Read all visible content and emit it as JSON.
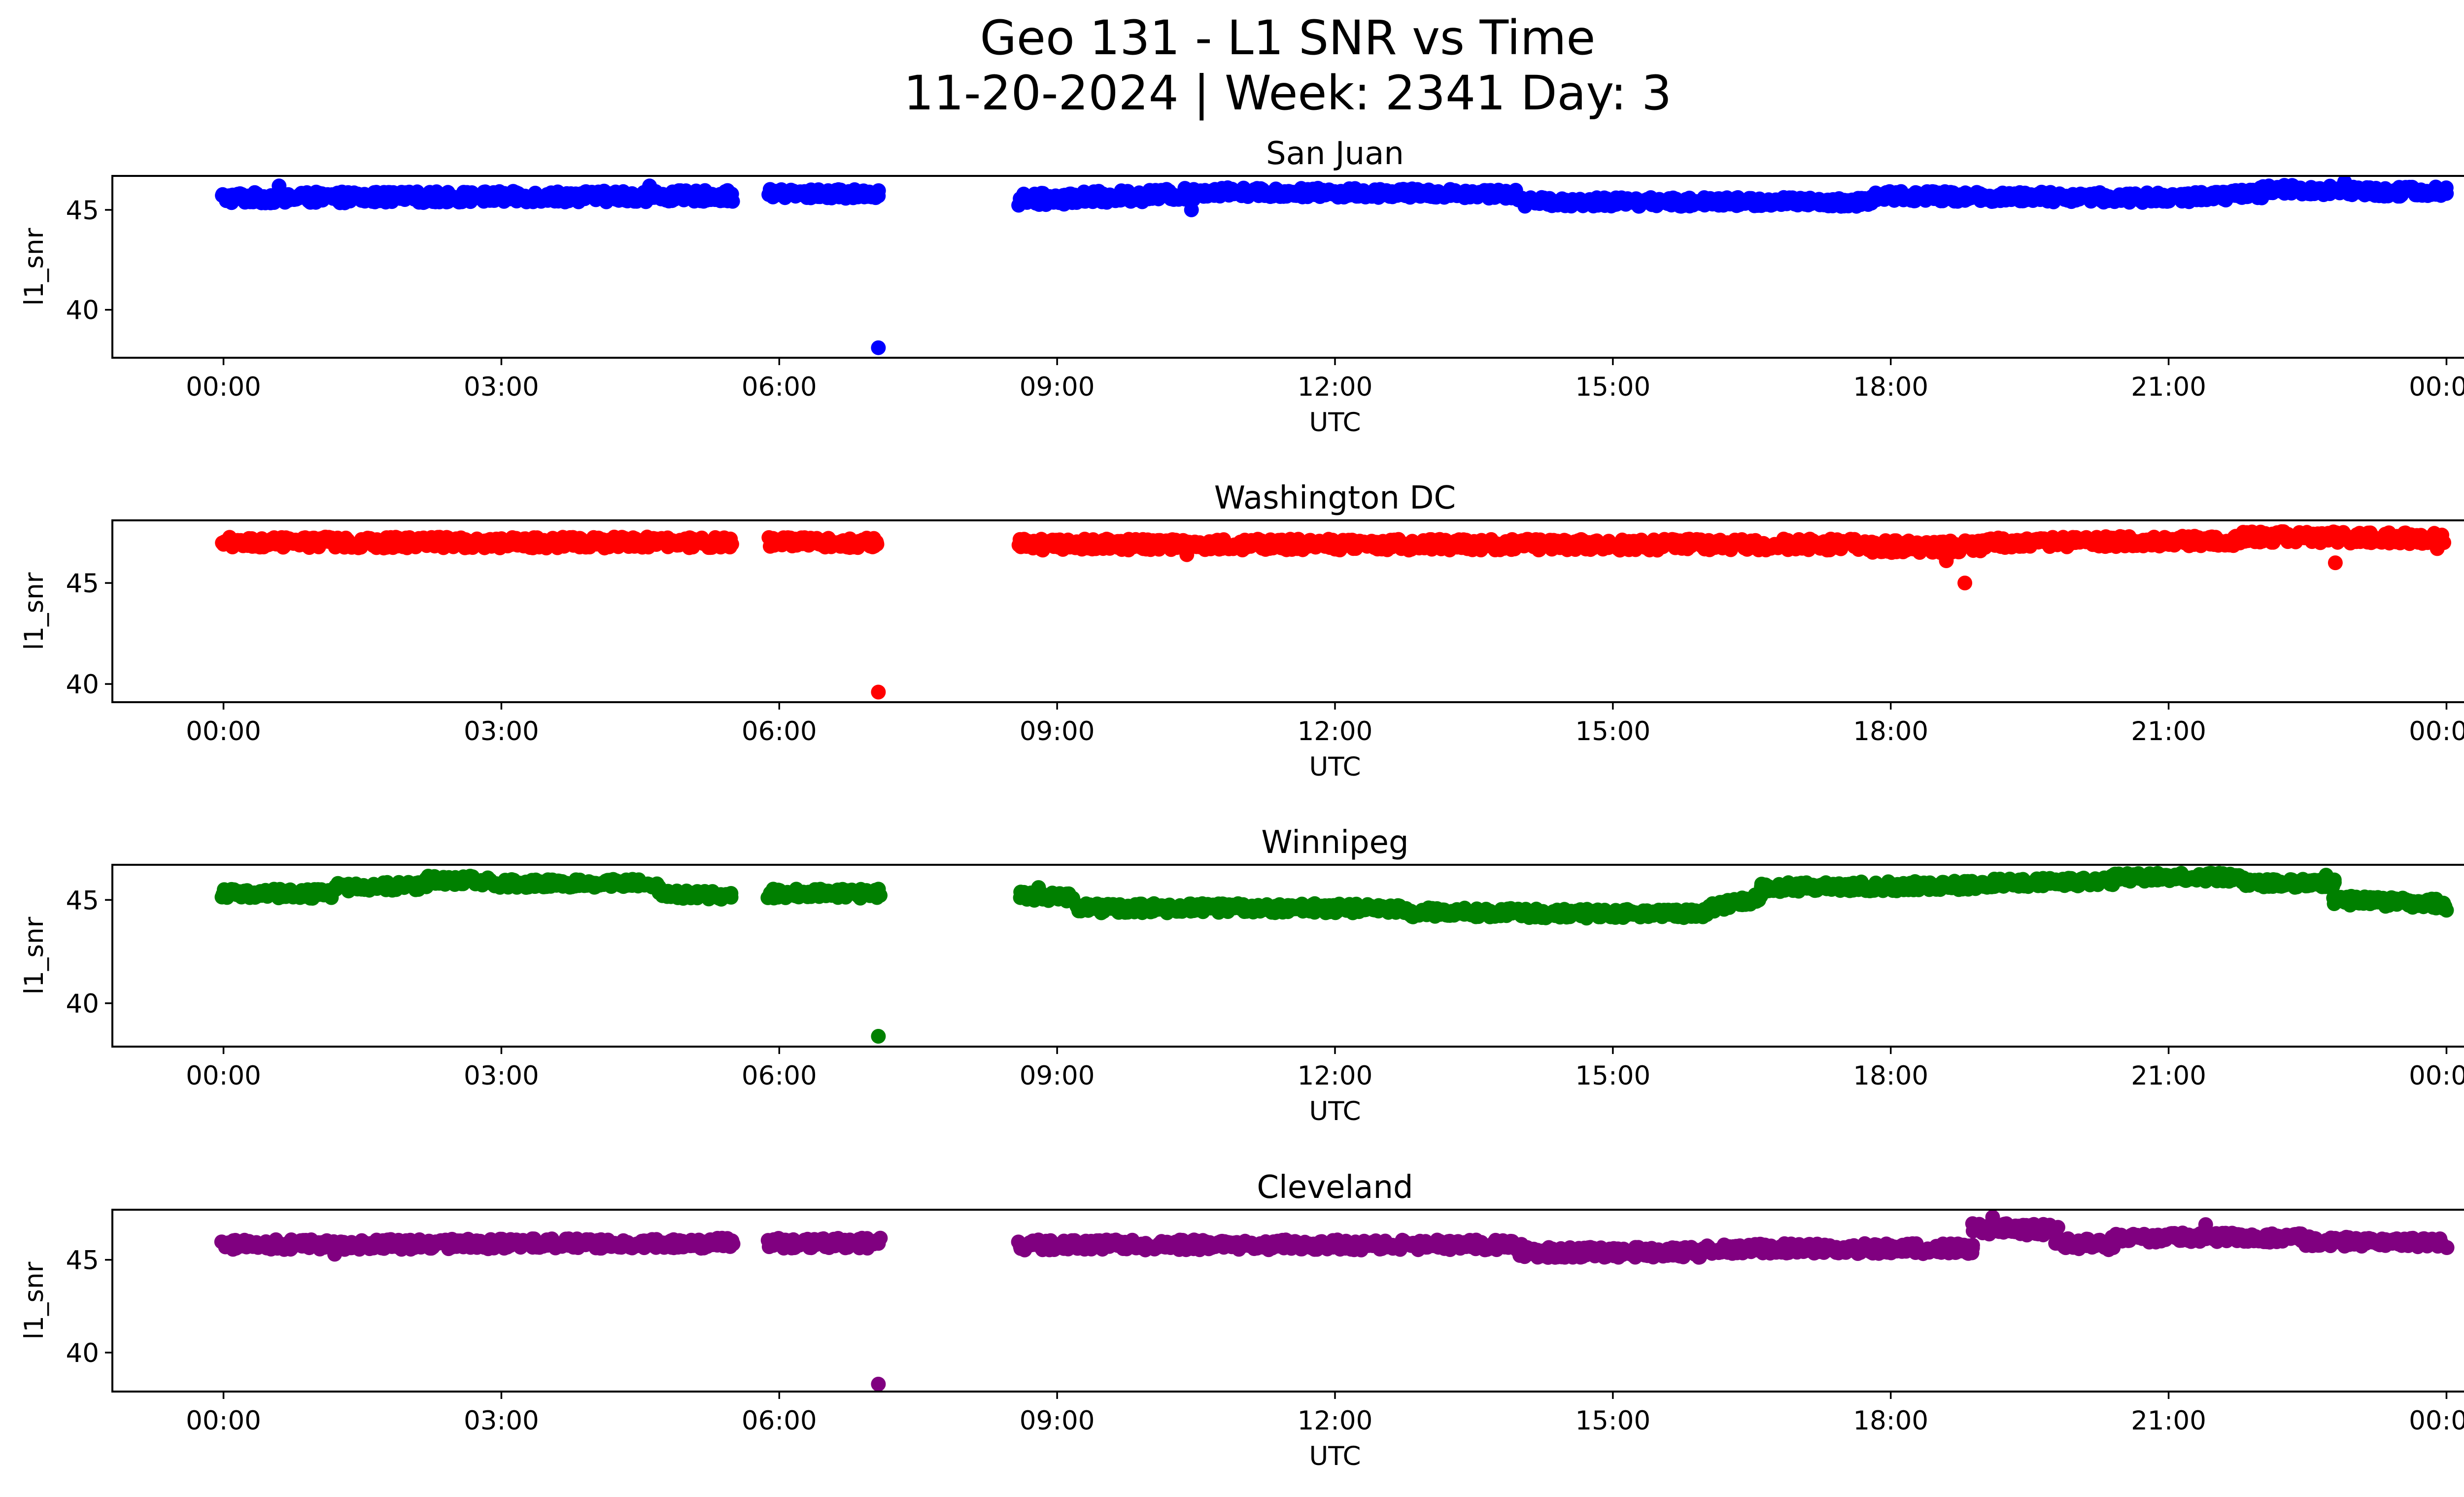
{
  "figure": {
    "title_line1": "Geo 131 - L1 SNR vs Time",
    "title_line2": "11-20-2024 | Week: 2341 Day: 3"
  },
  "chart_data": [
    {
      "type": "scatter",
      "title": "San Juan",
      "color": "#0000ff",
      "xlabel": "UTC",
      "ylabel": "l1_snr",
      "xlim_hours": [
        -1.2,
        25.2
      ],
      "ylim": [
        37.6,
        46.7
      ],
      "xticks_hours": [
        0,
        3,
        6,
        9,
        12,
        15,
        18,
        21,
        24
      ],
      "xtick_labels": [
        "00:00",
        "03:00",
        "06:00",
        "09:00",
        "12:00",
        "15:00",
        "18:00",
        "21:00",
        "00:00"
      ],
      "yticks": [
        40,
        45
      ],
      "ytick_labels": [
        "40",
        "45"
      ],
      "band_segments": [
        {
          "x": [
            0.0,
            5.5
          ],
          "y": [
            45.6,
            45.7
          ],
          "spread": 0.55
        },
        {
          "x": [
            5.9,
            7.1
          ],
          "y": [
            45.8,
            45.8
          ],
          "spread": 0.45
        },
        {
          "x": [
            8.6,
            10.5
          ],
          "y": [
            45.5,
            45.8
          ],
          "spread": 0.6
        },
        {
          "x": [
            10.5,
            14.0
          ],
          "y": [
            45.9,
            45.8
          ],
          "spread": 0.45
        },
        {
          "x": [
            14.0,
            17.8
          ],
          "y": [
            45.4,
            45.4
          ],
          "spread": 0.45
        },
        {
          "x": [
            17.8,
            21.0
          ],
          "y": [
            45.7,
            45.6
          ],
          "spread": 0.5
        },
        {
          "x": [
            21.0,
            22.0
          ],
          "y": [
            45.6,
            45.8
          ],
          "spread": 0.5
        },
        {
          "x": [
            22.0,
            24.0
          ],
          "y": [
            46.0,
            45.9
          ],
          "spread": 0.5
        }
      ],
      "outliers": [
        {
          "x": 7.07,
          "y": 38.1
        },
        {
          "x": 10.45,
          "y": 45.0
        },
        {
          "x": 0.6,
          "y": 46.2
        },
        {
          "x": 4.6,
          "y": 46.2
        },
        {
          "x": 22.9,
          "y": 46.4
        }
      ]
    },
    {
      "type": "scatter",
      "title": "Washington DC",
      "color": "#ff0000",
      "xlabel": "UTC",
      "ylabel": "l1_snr",
      "xlim_hours": [
        -1.2,
        25.2
      ],
      "ylim": [
        39.1,
        48.1
      ],
      "xticks_hours": [
        0,
        3,
        6,
        9,
        12,
        15,
        18,
        21,
        24
      ],
      "xtick_labels": [
        "00:00",
        "03:00",
        "06:00",
        "09:00",
        "12:00",
        "15:00",
        "18:00",
        "21:00",
        "00:00"
      ],
      "yticks": [
        40,
        45
      ],
      "ytick_labels": [
        "40",
        "45"
      ],
      "band_segments": [
        {
          "x": [
            0.0,
            5.5
          ],
          "y": [
            47.0,
            47.0
          ],
          "spread": 0.55
        },
        {
          "x": [
            5.9,
            7.1
          ],
          "y": [
            47.0,
            47.0
          ],
          "spread": 0.5
        },
        {
          "x": [
            8.6,
            17.8
          ],
          "y": [
            46.9,
            46.9
          ],
          "spread": 0.55
        },
        {
          "x": [
            17.8,
            19.0
          ],
          "y": [
            46.8,
            46.8
          ],
          "spread": 0.6
        },
        {
          "x": [
            19.0,
            21.8
          ],
          "y": [
            47.0,
            47.1
          ],
          "spread": 0.5
        },
        {
          "x": [
            21.8,
            24.0
          ],
          "y": [
            47.3,
            47.2
          ],
          "spread": 0.55
        }
      ],
      "outliers": [
        {
          "x": 7.07,
          "y": 39.6
        },
        {
          "x": 18.8,
          "y": 45.0
        },
        {
          "x": 22.8,
          "y": 46.0
        },
        {
          "x": 18.6,
          "y": 46.1
        },
        {
          "x": 10.4,
          "y": 46.4
        },
        {
          "x": 23.9,
          "y": 46.7
        }
      ]
    },
    {
      "type": "scatter",
      "title": "Winnipeg",
      "color": "#008000",
      "xlabel": "UTC",
      "ylabel": "l1_snr",
      "xlim_hours": [
        -1.2,
        25.2
      ],
      "ylim": [
        37.9,
        46.7
      ],
      "xticks_hours": [
        0,
        3,
        6,
        9,
        12,
        15,
        18,
        21,
        24
      ],
      "xtick_labels": [
        "00:00",
        "03:00",
        "06:00",
        "09:00",
        "12:00",
        "15:00",
        "18:00",
        "21:00",
        "00:00"
      ],
      "yticks": [
        40,
        45
      ],
      "ytick_labels": [
        "40",
        "45"
      ],
      "band_segments": [
        {
          "x": [
            0.0,
            1.2
          ],
          "y": [
            45.3,
            45.3
          ],
          "spread": 0.45
        },
        {
          "x": [
            1.2,
            2.2
          ],
          "y": [
            45.6,
            45.7
          ],
          "spread": 0.4
        },
        {
          "x": [
            2.2,
            2.9
          ],
          "y": [
            46.0,
            45.9
          ],
          "spread": 0.45
        },
        {
          "x": [
            2.9,
            4.7
          ],
          "y": [
            45.8,
            45.8
          ],
          "spread": 0.4
        },
        {
          "x": [
            4.7,
            5.5
          ],
          "y": [
            45.3,
            45.2
          ],
          "spread": 0.4
        },
        {
          "x": [
            5.9,
            7.1
          ],
          "y": [
            45.3,
            45.3
          ],
          "spread": 0.45
        },
        {
          "x": [
            8.6,
            9.2
          ],
          "y": [
            45.2,
            45.1
          ],
          "spread": 0.4
        },
        {
          "x": [
            9.2,
            12.8
          ],
          "y": [
            44.6,
            44.6
          ],
          "spread": 0.45
        },
        {
          "x": [
            12.8,
            16.0
          ],
          "y": [
            44.4,
            44.3
          ],
          "spread": 0.45
        },
        {
          "x": [
            16.0,
            16.6
          ],
          "y": [
            44.6,
            45.1
          ],
          "spread": 0.45
        },
        {
          "x": [
            16.6,
            19.0
          ],
          "y": [
            45.6,
            45.7
          ],
          "spread": 0.45
        },
        {
          "x": [
            19.0,
            20.4
          ],
          "y": [
            45.8,
            45.9
          ],
          "spread": 0.4
        },
        {
          "x": [
            20.4,
            21.8
          ],
          "y": [
            46.1,
            46.1
          ],
          "spread": 0.4
        },
        {
          "x": [
            21.8,
            22.8
          ],
          "y": [
            45.8,
            45.8
          ],
          "spread": 0.4
        },
        {
          "x": [
            22.8,
            24.0
          ],
          "y": [
            45.0,
            44.8
          ],
          "spread": 0.45
        }
      ],
      "outliers": [
        {
          "x": 7.07,
          "y": 38.4
        },
        {
          "x": 24.0,
          "y": 44.5
        },
        {
          "x": 8.8,
          "y": 45.6
        },
        {
          "x": 22.7,
          "y": 46.2
        }
      ]
    },
    {
      "type": "scatter",
      "title": "Cleveland",
      "color": "#800080",
      "xlabel": "UTC",
      "ylabel": "l1_snr",
      "xlim_hours": [
        -1.2,
        25.2
      ],
      "ylim": [
        37.9,
        47.7
      ],
      "xticks_hours": [
        0,
        3,
        6,
        9,
        12,
        15,
        18,
        21,
        24
      ],
      "xtick_labels": [
        "00:00",
        "03:00",
        "06:00",
        "09:00",
        "12:00",
        "15:00",
        "18:00",
        "21:00",
        "00:00"
      ],
      "yticks": [
        40,
        45
      ],
      "ytick_labels": [
        "40",
        "45"
      ],
      "band_segments": [
        {
          "x": [
            0.0,
            5.5
          ],
          "y": [
            45.8,
            45.9
          ],
          "spread": 0.55
        },
        {
          "x": [
            5.9,
            7.1
          ],
          "y": [
            45.9,
            45.9
          ],
          "spread": 0.55
        },
        {
          "x": [
            8.6,
            14.0
          ],
          "y": [
            45.8,
            45.8
          ],
          "spread": 0.55
        },
        {
          "x": [
            14.0,
            16.0
          ],
          "y": [
            45.4,
            45.4
          ],
          "spread": 0.55
        },
        {
          "x": [
            16.0,
            18.9
          ],
          "y": [
            45.6,
            45.6
          ],
          "spread": 0.55
        },
        {
          "x": [
            18.9,
            19.8
          ],
          "y": [
            46.7,
            46.6
          ],
          "spread": 0.6
        },
        {
          "x": [
            19.8,
            20.4
          ],
          "y": [
            45.9,
            45.8
          ],
          "spread": 0.55
        },
        {
          "x": [
            20.4,
            22.5
          ],
          "y": [
            46.2,
            46.2
          ],
          "spread": 0.5
        },
        {
          "x": [
            22.5,
            24.0
          ],
          "y": [
            46.0,
            45.9
          ],
          "spread": 0.5
        }
      ],
      "outliers": [
        {
          "x": 7.07,
          "y": 38.3
        },
        {
          "x": 19.1,
          "y": 47.3
        },
        {
          "x": 21.4,
          "y": 46.9
        },
        {
          "x": 1.2,
          "y": 45.3
        }
      ]
    }
  ]
}
